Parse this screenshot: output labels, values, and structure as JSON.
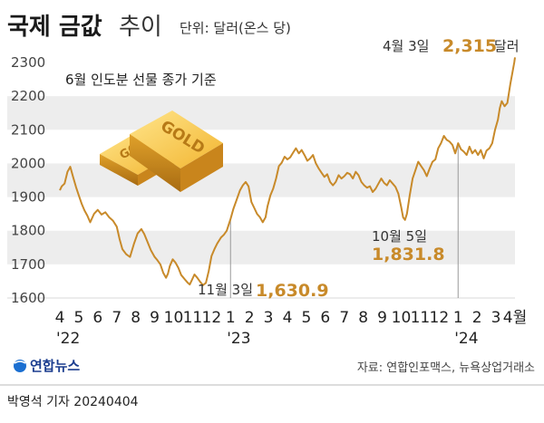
{
  "header": {
    "title": "국제 금값",
    "title_suffix": "추이",
    "unit": "단위: 달러(온스 당)"
  },
  "note": "6월 인도분 선물 종가 기준",
  "brand": {
    "logo_text": "연합뉴스"
  },
  "source": "자료: 연합인포맥스, 뉴욕상업거래소",
  "credit": "박영석 기자 20240404",
  "colors": {
    "line": "#c88a2a",
    "accent": "#c88a2a",
    "band": "#ededed"
  },
  "chart_data": {
    "type": "line",
    "ylim": [
      1600,
      2300
    ],
    "yticks": [
      1600,
      1700,
      1800,
      1900,
      2000,
      2100,
      2200,
      2300
    ],
    "xlim": [
      4.0,
      28.0
    ],
    "x_ticks": [
      {
        "label": "4",
        "x": 4
      },
      {
        "label": "5",
        "x": 5
      },
      {
        "label": "6",
        "x": 6
      },
      {
        "label": "7",
        "x": 7
      },
      {
        "label": "8",
        "x": 8
      },
      {
        "label": "9",
        "x": 9
      },
      {
        "label": "10",
        "x": 10
      },
      {
        "label": "11",
        "x": 11
      },
      {
        "label": "12",
        "x": 12
      },
      {
        "label": "1",
        "x": 13
      },
      {
        "label": "2",
        "x": 14
      },
      {
        "label": "3",
        "x": 15
      },
      {
        "label": "4",
        "x": 16
      },
      {
        "label": "5",
        "x": 17
      },
      {
        "label": "6",
        "x": 18
      },
      {
        "label": "7",
        "x": 19
      },
      {
        "label": "8",
        "x": 20
      },
      {
        "label": "9",
        "x": 21
      },
      {
        "label": "10",
        "x": 22
      },
      {
        "label": "11",
        "x": 23
      },
      {
        "label": "12",
        "x": 24
      },
      {
        "label": "1",
        "x": 25
      },
      {
        "label": "2",
        "x": 26
      },
      {
        "label": "3",
        "x": 27
      },
      {
        "label": "4월",
        "x": 28
      }
    ],
    "year_labels": [
      {
        "label": "'22",
        "x": 4
      },
      {
        "label": "'23",
        "x": 13
      },
      {
        "label": "'24",
        "x": 25
      }
    ],
    "series": [
      {
        "points": [
          [
            4.0,
            1920
          ],
          [
            4.1,
            1932
          ],
          [
            4.25,
            1940
          ],
          [
            4.4,
            1975
          ],
          [
            4.55,
            1990
          ],
          [
            4.7,
            1960
          ],
          [
            4.85,
            1930
          ],
          [
            5.0,
            1905
          ],
          [
            5.15,
            1880
          ],
          [
            5.3,
            1860
          ],
          [
            5.45,
            1845
          ],
          [
            5.6,
            1825
          ],
          [
            5.8,
            1850
          ],
          [
            6.0,
            1862
          ],
          [
            6.2,
            1848
          ],
          [
            6.4,
            1855
          ],
          [
            6.6,
            1840
          ],
          [
            6.8,
            1830
          ],
          [
            7.0,
            1812
          ],
          [
            7.15,
            1775
          ],
          [
            7.3,
            1745
          ],
          [
            7.5,
            1730
          ],
          [
            7.7,
            1722
          ],
          [
            7.9,
            1760
          ],
          [
            8.1,
            1792
          ],
          [
            8.3,
            1805
          ],
          [
            8.45,
            1790
          ],
          [
            8.6,
            1770
          ],
          [
            8.8,
            1742
          ],
          [
            9.0,
            1722
          ],
          [
            9.15,
            1712
          ],
          [
            9.3,
            1700
          ],
          [
            9.45,
            1675
          ],
          [
            9.6,
            1660
          ],
          [
            9.7,
            1672
          ],
          [
            9.8,
            1695
          ],
          [
            9.95,
            1715
          ],
          [
            10.1,
            1705
          ],
          [
            10.25,
            1690
          ],
          [
            10.4,
            1668
          ],
          [
            10.6,
            1655
          ],
          [
            10.75,
            1645
          ],
          [
            10.85,
            1640
          ],
          [
            10.95,
            1652
          ],
          [
            11.1,
            1670
          ],
          [
            11.25,
            1660
          ],
          [
            11.4,
            1648
          ],
          [
            11.55,
            1638
          ],
          [
            11.7,
            1645
          ],
          [
            11.85,
            1680
          ],
          [
            12.0,
            1725
          ],
          [
            12.15,
            1745
          ],
          [
            12.3,
            1762
          ],
          [
            12.5,
            1780
          ],
          [
            12.65,
            1788
          ],
          [
            12.8,
            1800
          ],
          [
            13.0,
            1835
          ],
          [
            13.15,
            1865
          ],
          [
            13.3,
            1888
          ],
          [
            13.5,
            1920
          ],
          [
            13.65,
            1935
          ],
          [
            13.8,
            1945
          ],
          [
            13.95,
            1932
          ],
          [
            14.1,
            1885
          ],
          [
            14.25,
            1868
          ],
          [
            14.4,
            1850
          ],
          [
            14.55,
            1840
          ],
          [
            14.7,
            1825
          ],
          [
            14.85,
            1840
          ],
          [
            14.95,
            1872
          ],
          [
            15.1,
            1905
          ],
          [
            15.25,
            1925
          ],
          [
            15.4,
            1955
          ],
          [
            15.55,
            1992
          ],
          [
            15.7,
            2002
          ],
          [
            15.85,
            2020
          ],
          [
            16.0,
            2012
          ],
          [
            16.15,
            2018
          ],
          [
            16.3,
            2032
          ],
          [
            16.45,
            2045
          ],
          [
            16.6,
            2030
          ],
          [
            16.75,
            2040
          ],
          [
            16.9,
            2025
          ],
          [
            17.05,
            2008
          ],
          [
            17.2,
            2015
          ],
          [
            17.35,
            2025
          ],
          [
            17.5,
            2000
          ],
          [
            17.65,
            1985
          ],
          [
            17.8,
            1972
          ],
          [
            17.95,
            1960
          ],
          [
            18.1,
            1968
          ],
          [
            18.25,
            1945
          ],
          [
            18.4,
            1935
          ],
          [
            18.55,
            1945
          ],
          [
            18.7,
            1965
          ],
          [
            18.85,
            1955
          ],
          [
            19.0,
            1962
          ],
          [
            19.15,
            1972
          ],
          [
            19.3,
            1968
          ],
          [
            19.45,
            1955
          ],
          [
            19.6,
            1975
          ],
          [
            19.75,
            1965
          ],
          [
            19.9,
            1945
          ],
          [
            20.05,
            1935
          ],
          [
            20.2,
            1928
          ],
          [
            20.35,
            1932
          ],
          [
            20.5,
            1915
          ],
          [
            20.65,
            1925
          ],
          [
            20.8,
            1940
          ],
          [
            20.95,
            1955
          ],
          [
            21.1,
            1942
          ],
          [
            21.25,
            1935
          ],
          [
            21.4,
            1950
          ],
          [
            21.55,
            1940
          ],
          [
            21.7,
            1930
          ],
          [
            21.85,
            1910
          ],
          [
            22.0,
            1870
          ],
          [
            22.1,
            1840
          ],
          [
            22.2,
            1832
          ],
          [
            22.3,
            1850
          ],
          [
            22.45,
            1905
          ],
          [
            22.6,
            1955
          ],
          [
            22.75,
            1980
          ],
          [
            22.9,
            2005
          ],
          [
            23.05,
            1992
          ],
          [
            23.2,
            1980
          ],
          [
            23.35,
            1962
          ],
          [
            23.5,
            1985
          ],
          [
            23.65,
            2005
          ],
          [
            23.8,
            2012
          ],
          [
            23.95,
            2045
          ],
          [
            24.1,
            2060
          ],
          [
            24.25,
            2082
          ],
          [
            24.4,
            2070
          ],
          [
            24.55,
            2065
          ],
          [
            24.7,
            2055
          ],
          [
            24.85,
            2030
          ],
          [
            25.0,
            2060
          ],
          [
            25.15,
            2042
          ],
          [
            25.3,
            2035
          ],
          [
            25.45,
            2025
          ],
          [
            25.6,
            2050
          ],
          [
            25.75,
            2030
          ],
          [
            25.9,
            2040
          ],
          [
            26.05,
            2025
          ],
          [
            26.2,
            2040
          ],
          [
            26.35,
            2015
          ],
          [
            26.5,
            2038
          ],
          [
            26.65,
            2045
          ],
          [
            26.8,
            2060
          ],
          [
            26.95,
            2100
          ],
          [
            27.1,
            2130
          ],
          [
            27.2,
            2165
          ],
          [
            27.3,
            2185
          ],
          [
            27.45,
            2170
          ],
          [
            27.6,
            2180
          ],
          [
            27.75,
            2235
          ],
          [
            27.88,
            2275
          ],
          [
            27.96,
            2300
          ],
          [
            28.0,
            2315
          ]
        ]
      }
    ],
    "annotations": [
      {
        "label": "11월 3일",
        "value": "1,630.9",
        "x": 11.0,
        "y": 1630.9
      },
      {
        "label": "10월 5일",
        "value": "1,831.8",
        "x": 22.2,
        "y": 1831.8
      },
      {
        "label": "4월 3일",
        "value": "2,315",
        "suffix": "달러",
        "x": 28.0,
        "y": 2315
      }
    ]
  }
}
